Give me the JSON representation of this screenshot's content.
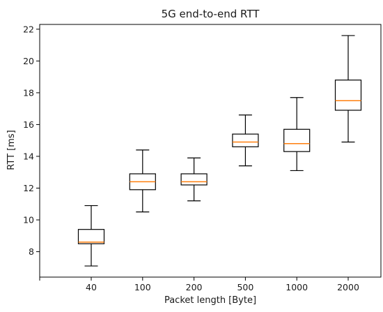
{
  "chart_data": {
    "type": "box",
    "title": "5G end-to-end RTT",
    "xlabel": "Packet length [Byte]",
    "ylabel": "RTT [ms]",
    "ylim": [
      6.4,
      22.3
    ],
    "yticks": [
      8,
      10,
      12,
      14,
      16,
      18,
      20,
      22
    ],
    "categories": [
      "40",
      "100",
      "200",
      "500",
      "1000",
      "2000"
    ],
    "boxes": [
      {
        "category": "40",
        "whisker_low": 7.1,
        "q1": 8.5,
        "median": 8.6,
        "q3": 9.4,
        "whisker_high": 10.9
      },
      {
        "category": "100",
        "whisker_low": 10.5,
        "q1": 11.9,
        "median": 12.4,
        "q3": 12.9,
        "whisker_high": 14.4
      },
      {
        "category": "200",
        "whisker_low": 11.2,
        "q1": 12.2,
        "median": 12.4,
        "q3": 12.9,
        "whisker_high": 13.9
      },
      {
        "category": "500",
        "whisker_low": 13.4,
        "q1": 14.6,
        "median": 14.9,
        "q3": 15.4,
        "whisker_high": 16.6
      },
      {
        "category": "1000",
        "whisker_low": 13.1,
        "q1": 14.3,
        "median": 14.8,
        "q3": 15.7,
        "whisker_high": 17.7
      },
      {
        "category": "2000",
        "whisker_low": 14.9,
        "q1": 16.9,
        "median": 17.5,
        "q3": 18.8,
        "whisker_high": 21.6
      }
    ],
    "grid": false,
    "colors": {
      "box": "#000000",
      "median": "#ff7f0e",
      "axis": "#000000"
    }
  }
}
